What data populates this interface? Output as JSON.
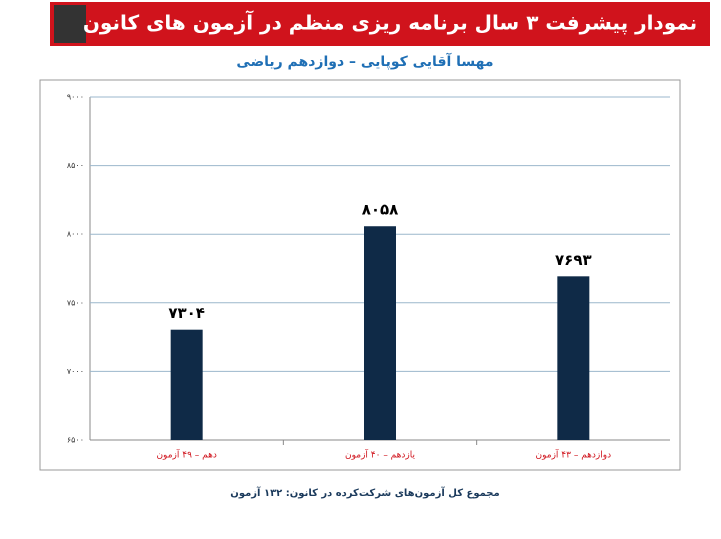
{
  "chart_data": {
    "type": "bar",
    "title": "نمودار پیشرفت ۳ سال برنامه ریزی منظم در آزمون های کانون",
    "subtitle": "مهسا آقایی کوپایی – دوازدهم ریاضی",
    "categories": [
      "دهم – ۴۹ آزمون",
      "یازدهم – ۴۰ آزمون",
      "دوازدهم – ۴۳ آزمون"
    ],
    "values": [
      7304,
      8058,
      7693
    ],
    "value_labels": [
      "۷۳۰۴",
      "۸۰۵۸",
      "۷۶۹۳"
    ],
    "color": "#0f2a47",
    "ylim": [
      6500,
      9000
    ],
    "yticks": [
      {
        "value": 6500,
        "label": "۶۵۰۰"
      },
      {
        "value": 7000,
        "label": "۷۰۰۰"
      },
      {
        "value": 7500,
        "label": "۷۵۰۰"
      },
      {
        "value": 8000,
        "label": "۸۰۰۰"
      },
      {
        "value": 8500,
        "label": "۸۵۰۰"
      },
      {
        "value": 9000,
        "label": "۹۰۰۰"
      }
    ],
    "grid": true,
    "footnote": "مجموع کل آزمون‌های شرکت‌کرده در کانون: ۱۳۲ آزمون"
  }
}
